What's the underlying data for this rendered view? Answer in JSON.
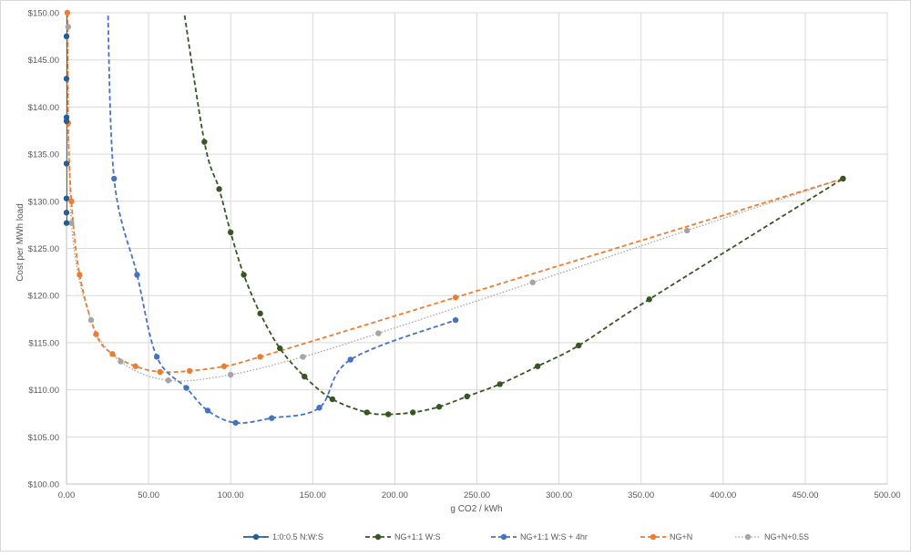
{
  "chart_data": {
    "type": "scatter",
    "subtype": "scatter-with-smooth-lines-and-markers",
    "title": "",
    "xlabel": "g CO2 / kWh",
    "ylabel": "Cost per MWh load",
    "xlim": [
      0,
      500
    ],
    "ylim": [
      100,
      150
    ],
    "x_ticks": [
      "0.00",
      "50.00",
      "100.00",
      "150.00",
      "200.00",
      "250.00",
      "300.00",
      "350.00",
      "400.00",
      "450.00",
      "500.00"
    ],
    "y_ticks": [
      "$100.00",
      "$105.00",
      "$110.00",
      "$115.00",
      "$120.00",
      "$125.00",
      "$130.00",
      "$135.00",
      "$140.00",
      "$145.00",
      "$150.00"
    ],
    "grid": true,
    "legend_position": "bottom",
    "series": [
      {
        "name": "1:0:0.5 N:W:S",
        "color": "#255e91",
        "line": "solid",
        "points": [
          [
            0,
            160
          ],
          [
            0,
            147.5
          ],
          [
            0,
            143.0
          ],
          [
            0,
            138.9
          ],
          [
            0,
            138.5
          ],
          [
            0,
            134.0
          ],
          [
            0,
            130.3
          ],
          [
            0,
            128.8
          ],
          [
            0,
            127.7
          ]
        ]
      },
      {
        "name": "NG+1:1 W:S",
        "color": "#375623",
        "line": "dashed",
        "points": [
          [
            70,
            152
          ],
          [
            84,
            136.3
          ],
          [
            93,
            131.3
          ],
          [
            100,
            126.7
          ],
          [
            108,
            122.2
          ],
          [
            118,
            118.1
          ],
          [
            130,
            114.4
          ],
          [
            145,
            111.4
          ],
          [
            162,
            109.0
          ],
          [
            183,
            107.6
          ],
          [
            196,
            107.4
          ],
          [
            211,
            107.6
          ],
          [
            227,
            108.2
          ],
          [
            244,
            109.3
          ],
          [
            264,
            110.6
          ],
          [
            287,
            112.5
          ],
          [
            312,
            114.7
          ],
          [
            355,
            119.6
          ],
          [
            473,
            132.4
          ]
        ]
      },
      {
        "name": "NG+1:1 W:S + 4hr",
        "color": "#4472c4",
        "line": "dashed",
        "points": [
          [
            25,
            152
          ],
          [
            29,
            132.4
          ],
          [
            43,
            122.2
          ],
          [
            55,
            113.5
          ],
          [
            73,
            110.2
          ],
          [
            86,
            107.8
          ],
          [
            103,
            106.5
          ],
          [
            125,
            107.0
          ],
          [
            154,
            108.1
          ],
          [
            173,
            113.2
          ],
          [
            237,
            117.4
          ]
        ]
      },
      {
        "name": "NG+N",
        "color": "#ed7d31",
        "line": "dashed",
        "points": [
          [
            0.5,
            150
          ],
          [
            1,
            138.3
          ],
          [
            3,
            130.0
          ],
          [
            8,
            122.2
          ],
          [
            18,
            115.9
          ],
          [
            28,
            113.8
          ],
          [
            42,
            112.5
          ],
          [
            57,
            111.9
          ],
          [
            75,
            112.0
          ],
          [
            96,
            112.5
          ],
          [
            118,
            113.5
          ],
          [
            237,
            119.8
          ],
          [
            473,
            132.4
          ]
        ]
      },
      {
        "name": "NG+N+0.5S",
        "color": "#a5a5a5",
        "line": "dotted",
        "points": [
          [
            1,
            148.5
          ],
          [
            3,
            127.7
          ],
          [
            15,
            117.4
          ],
          [
            33,
            113.0
          ],
          [
            62,
            111.0
          ],
          [
            100,
            111.6
          ],
          [
            144,
            113.5
          ],
          [
            190,
            116.0
          ],
          [
            284,
            121.4
          ],
          [
            378,
            126.9
          ],
          [
            473,
            132.4
          ]
        ]
      }
    ]
  },
  "legend": {
    "items": [
      {
        "label": "1:0:0.5 N:W:S"
      },
      {
        "label": "NG+1:1 W:S"
      },
      {
        "label": "NG+1:1 W:S + 4hr"
      },
      {
        "label": "NG+N"
      },
      {
        "label": "NG+N+0.5S"
      }
    ]
  }
}
